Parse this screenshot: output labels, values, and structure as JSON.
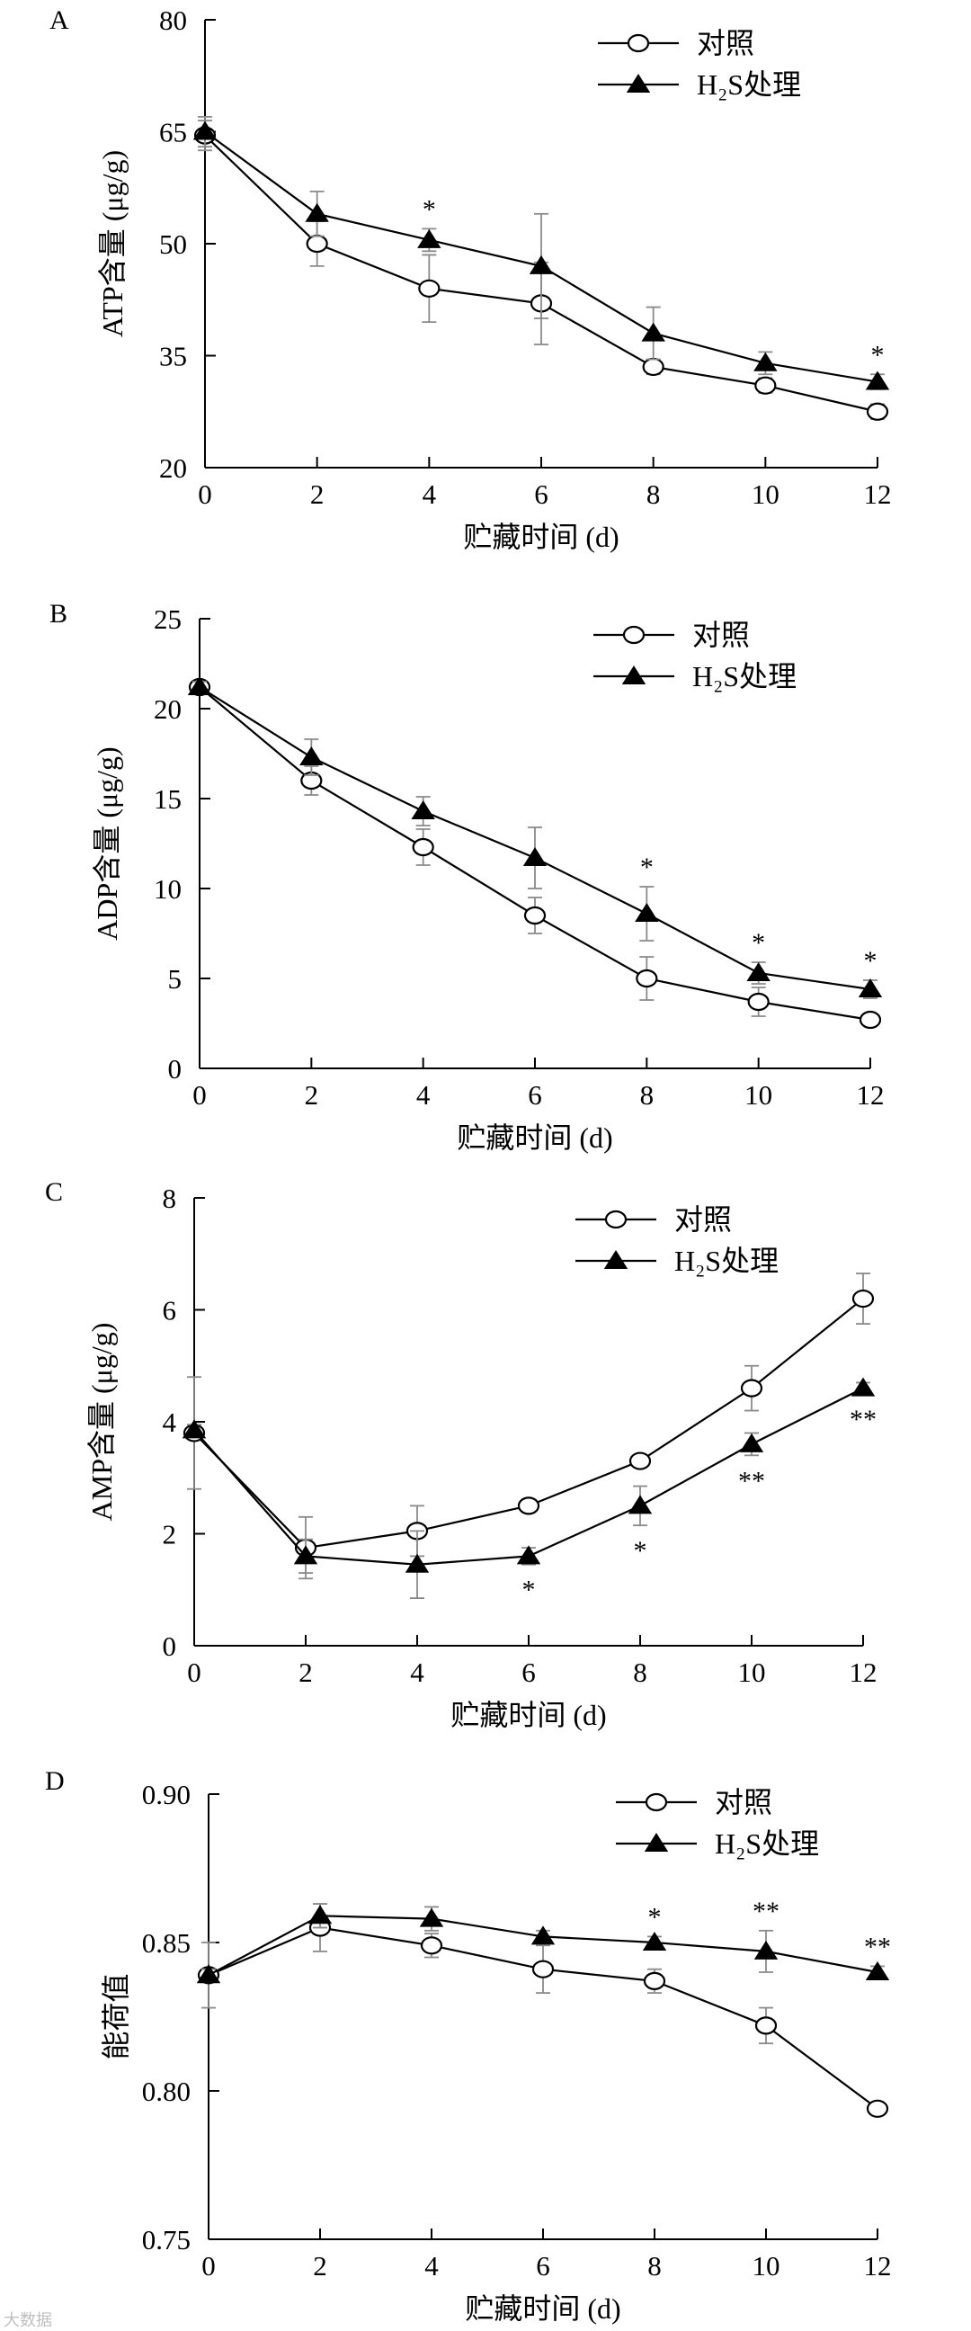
{
  "watermark": "大数据",
  "chart_data": [
    {
      "panel": "A",
      "type": "line",
      "ylabel": "ATP含量 (μg/g)",
      "xlabel": "贮藏时间 (d)",
      "x": [
        0,
        2,
        4,
        6,
        8,
        10,
        12
      ],
      "xticks": [
        0,
        2,
        4,
        6,
        8,
        10,
        12
      ],
      "xlim": [
        0,
        12
      ],
      "ylim": [
        20,
        80
      ],
      "yticks": [
        20,
        35,
        50,
        65,
        80
      ],
      "ytick_labels": [
        "20",
        "35",
        "50",
        "65",
        "80"
      ],
      "legend": "top-right",
      "series": [
        {
          "name": "对照",
          "marker": "open-circle",
          "values": [
            64.5,
            50,
            44,
            42,
            33.5,
            31,
            27.5
          ],
          "errors": [
            2,
            3,
            4.5,
            5.5,
            1,
            1,
            1
          ]
        },
        {
          "name": "H₂S处理",
          "marker": "filled-triangle",
          "values": [
            65,
            54,
            50.5,
            47,
            38,
            34,
            31.5
          ],
          "errors": [
            2,
            3,
            1.5,
            7,
            3.5,
            1.5,
            1
          ]
        }
      ],
      "annotations": [
        {
          "x": 4,
          "text": "*"
        },
        {
          "x": 12,
          "text": "*"
        }
      ]
    },
    {
      "panel": "B",
      "type": "line",
      "ylabel": "ADP含量 (μg/g)",
      "xlabel": "贮藏时间 (d)",
      "x": [
        0,
        2,
        4,
        6,
        8,
        10,
        12
      ],
      "xticks": [
        0,
        2,
        4,
        6,
        8,
        10,
        12
      ],
      "xlim": [
        0,
        12
      ],
      "ylim": [
        0,
        25
      ],
      "yticks": [
        0,
        5,
        10,
        15,
        20,
        25
      ],
      "ytick_labels": [
        "0",
        "5",
        "10",
        "15",
        "20",
        "25"
      ],
      "legend": "top-right",
      "series": [
        {
          "name": "对照",
          "marker": "open-circle",
          "values": [
            21.2,
            16,
            12.3,
            8.5,
            5,
            3.7,
            2.7
          ],
          "errors": [
            0.3,
            0.8,
            1,
            1,
            1.2,
            0.8,
            0.2
          ]
        },
        {
          "name": "H₂S处理",
          "marker": "filled-triangle",
          "values": [
            21.2,
            17.3,
            14.3,
            11.7,
            8.6,
            5.3,
            4.4
          ],
          "errors": [
            0.3,
            1,
            0.8,
            1.7,
            1.5,
            0.6,
            0.5
          ]
        }
      ],
      "annotations": [
        {
          "x": 8,
          "text": "*"
        },
        {
          "x": 10,
          "text": "*"
        },
        {
          "x": 12,
          "text": "*"
        }
      ]
    },
    {
      "panel": "C",
      "type": "line",
      "ylabel": "AMP含量 (μg/g)",
      "xlabel": "贮藏时间 (d)",
      "x": [
        0,
        2,
        4,
        6,
        8,
        10,
        12
      ],
      "xticks": [
        0,
        2,
        4,
        6,
        8,
        10,
        12
      ],
      "xlim": [
        0,
        12
      ],
      "ylim": [
        0,
        8
      ],
      "yticks": [
        0,
        2,
        4,
        6,
        8
      ],
      "ytick_labels": [
        "0",
        "2",
        "4",
        "6",
        "8"
      ],
      "legend": "top-right",
      "series": [
        {
          "name": "对照",
          "marker": "open-circle",
          "values": [
            3.8,
            1.75,
            2.05,
            2.5,
            3.3,
            4.6,
            6.2
          ],
          "errors": [
            1,
            0.55,
            0.45,
            0.1,
            0.1,
            0.4,
            0.45
          ]
        },
        {
          "name": "H₂S处理",
          "marker": "filled-triangle",
          "values": [
            3.85,
            1.6,
            1.45,
            1.6,
            2.5,
            3.6,
            4.6
          ],
          "errors": [
            0.1,
            0.3,
            0.6,
            0.15,
            0.35,
            0.2,
            0.1
          ]
        }
      ],
      "annotations": [
        {
          "x": 6,
          "text": "*"
        },
        {
          "x": 8,
          "text": "*"
        },
        {
          "x": 10,
          "text": "**"
        },
        {
          "x": 12,
          "text": "**"
        }
      ]
    },
    {
      "panel": "D",
      "type": "line",
      "ylabel": "能荷值",
      "xlabel": "贮藏时间 (d)",
      "x": [
        0,
        2,
        4,
        6,
        8,
        10,
        12
      ],
      "xticks": [
        0,
        2,
        4,
        6,
        8,
        10,
        12
      ],
      "xlim": [
        0,
        12
      ],
      "ylim": [
        0.75,
        0.9
      ],
      "yticks": [
        0.75,
        0.8,
        0.85,
        0.9
      ],
      "ytick_labels": [
        "0.75",
        "0.80",
        "0.85",
        "0.90"
      ],
      "legend": "top-right",
      "series": [
        {
          "name": "对照",
          "marker": "open-circle",
          "values": [
            0.839,
            0.855,
            0.849,
            0.841,
            0.837,
            0.822,
            0.794
          ],
          "errors": [
            0.011,
            0.008,
            0.004,
            0.008,
            0.004,
            0.006,
            0.001
          ]
        },
        {
          "name": "H₂S处理",
          "marker": "filled-triangle",
          "values": [
            0.839,
            0.859,
            0.858,
            0.852,
            0.85,
            0.847,
            0.84
          ],
          "errors": [
            0.002,
            0.004,
            0.004,
            0.002,
            0.002,
            0.007,
            0.002
          ]
        }
      ],
      "annotations": [
        {
          "x": 8,
          "text": "*"
        },
        {
          "x": 10,
          "text": "**"
        },
        {
          "x": 12,
          "text": "**"
        }
      ]
    }
  ]
}
